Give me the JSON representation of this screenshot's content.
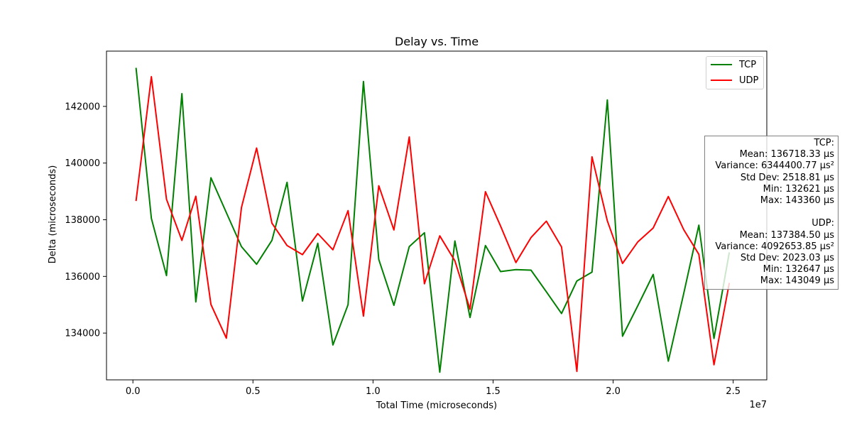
{
  "chart_data": {
    "type": "line",
    "title": "Delay vs. Time",
    "xlabel": "Total Time (microseconds)",
    "ylabel": "Delta (microseconds)",
    "x_offset_label": "1e7",
    "xlim": [
      -0.11,
      2.64
    ],
    "ylim": [
      132350,
      143950
    ],
    "x_ticks": [
      0.0,
      0.5,
      1.0,
      1.5,
      2.0,
      2.5
    ],
    "x_tick_labels": [
      "0.0",
      "0.5",
      "1.0",
      "1.5",
      "2.0",
      "2.5"
    ],
    "y_ticks": [
      134000,
      136000,
      138000,
      140000,
      142000
    ],
    "y_tick_labels": [
      "134000",
      "136000",
      "138000",
      "140000",
      "142000"
    ],
    "grid": false,
    "legend_position": "top-right",
    "series": [
      {
        "name": "TCP",
        "color": "#008000",
        "x": [
          0.013,
          0.077,
          0.14,
          0.204,
          0.262,
          0.325,
          0.389,
          0.452,
          0.515,
          0.579,
          0.642,
          0.706,
          0.77,
          0.833,
          0.896,
          0.96,
          1.024,
          1.087,
          1.151,
          1.214,
          1.278,
          1.341,
          1.404,
          1.468,
          1.531,
          1.595,
          1.658,
          1.722,
          1.785,
          1.849,
          1.912,
          1.976,
          2.039,
          2.103,
          2.167,
          2.23,
          2.294,
          2.357,
          2.42,
          2.484
        ],
        "values": [
          143360,
          138050,
          136030,
          142450,
          135100,
          139480,
          138250,
          137050,
          136430,
          137270,
          139320,
          135130,
          137170,
          133580,
          135000,
          142880,
          136600,
          134980,
          137050,
          137540,
          132621,
          137250,
          134550,
          137090,
          136170,
          136240,
          136220,
          135460,
          134690,
          135840,
          136150,
          142230,
          133890,
          134970,
          136070,
          133010,
          135400,
          137810,
          133810,
          136850
        ]
      },
      {
        "name": "UDP",
        "color": "#ff0000",
        "x": [
          0.013,
          0.077,
          0.14,
          0.204,
          0.262,
          0.325,
          0.389,
          0.452,
          0.515,
          0.579,
          0.642,
          0.706,
          0.77,
          0.833,
          0.896,
          0.96,
          1.024,
          1.087,
          1.151,
          1.214,
          1.278,
          1.341,
          1.404,
          1.468,
          1.531,
          1.595,
          1.658,
          1.722,
          1.785,
          1.849,
          1.912,
          1.976,
          2.039,
          2.103,
          2.167,
          2.23,
          2.294,
          2.357,
          2.42,
          2.484
        ],
        "values": [
          138660,
          143049,
          138720,
          137270,
          138830,
          135010,
          133820,
          138430,
          140530,
          137880,
          137090,
          136770,
          137510,
          136940,
          138320,
          134600,
          139200,
          137640,
          140920,
          135740,
          137430,
          136550,
          134840,
          138990,
          137780,
          136490,
          137370,
          137950,
          137040,
          132647,
          140220,
          137960,
          136460,
          137220,
          137710,
          138820,
          137650,
          136780,
          132880,
          135770
        ]
      }
    ]
  },
  "stats": {
    "tcp_header": "TCP:",
    "tcp_mean": "Mean: 136718.33 μs",
    "tcp_variance": "Variance: 6344400.77 μs²",
    "tcp_stddev": "Std Dev: 2518.81 μs",
    "tcp_min": "Min: 132621 μs",
    "tcp_max": "Max: 143360 μs",
    "udp_header": "UDP:",
    "udp_mean": "Mean: 137384.50 μs",
    "udp_variance": "Variance: 4092653.85 μs²",
    "udp_stddev": "Std Dev: 2023.03 μs",
    "udp_min": "Min: 132647 μs",
    "udp_max": "Max: 143049 μs"
  }
}
